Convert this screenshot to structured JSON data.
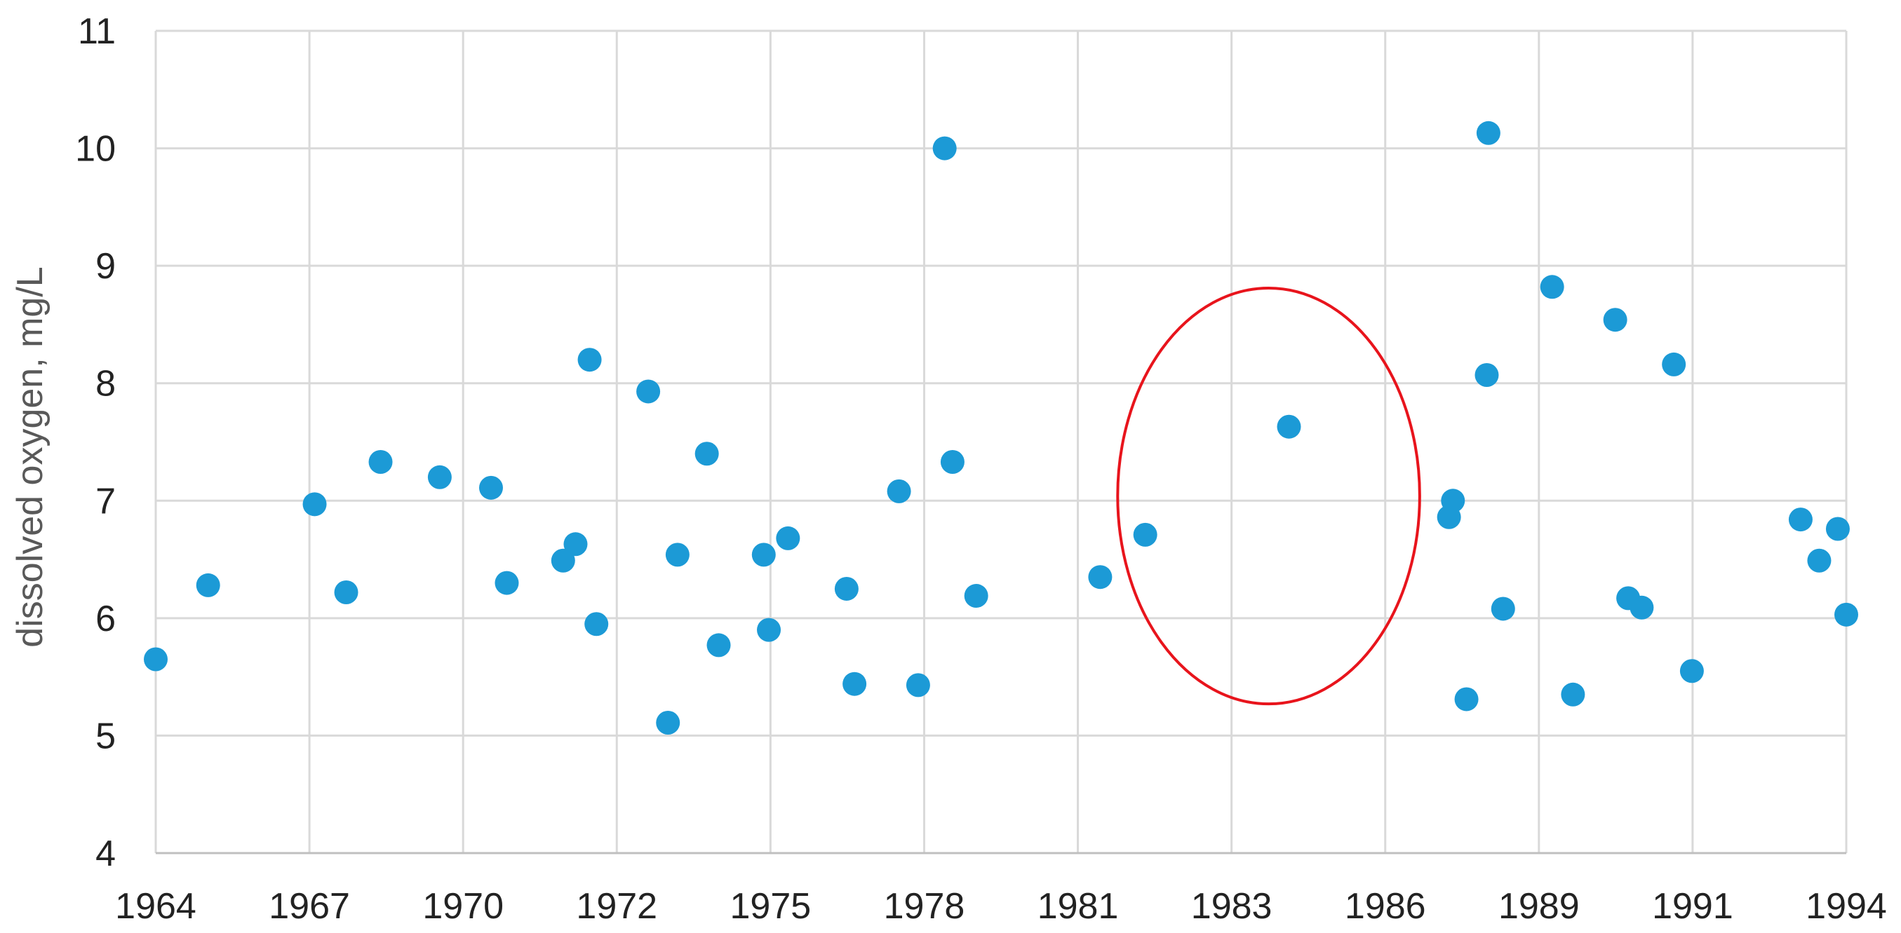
{
  "chart_data": {
    "type": "scatter",
    "title": "",
    "xlabel": "",
    "ylabel": "dissolved oxygen, mg/L",
    "xlim": [
      1964.0,
      1994.0
    ],
    "ylim": [
      4,
      11
    ],
    "y_ticks": [
      4,
      5,
      6,
      7,
      8,
      9,
      10,
      11
    ],
    "x_tick_labels": [
      "1964",
      "1967",
      "1970",
      "1972",
      "1975",
      "1978",
      "1981",
      "1983",
      "1986",
      "1989",
      "1991",
      "1994"
    ],
    "grid": true,
    "legend": "none",
    "point_color": "#1c9ad6",
    "series": [
      {
        "points": [
          [
            1964.0,
            5.65
          ],
          [
            1964.93,
            6.28
          ],
          [
            1966.82,
            6.97
          ],
          [
            1967.38,
            6.22
          ],
          [
            1967.99,
            7.33
          ],
          [
            1969.04,
            7.2
          ],
          [
            1969.95,
            7.11
          ],
          [
            1970.23,
            6.3
          ],
          [
            1971.23,
            6.49
          ],
          [
            1971.45,
            6.63
          ],
          [
            1971.7,
            8.2
          ],
          [
            1971.82,
            5.95
          ],
          [
            1972.74,
            7.93
          ],
          [
            1973.09,
            5.11
          ],
          [
            1973.26,
            6.54
          ],
          [
            1973.78,
            7.4
          ],
          [
            1973.99,
            5.77
          ],
          [
            1974.79,
            6.54
          ],
          [
            1974.88,
            5.9
          ],
          [
            1975.22,
            6.68
          ],
          [
            1976.26,
            6.25
          ],
          [
            1976.4,
            5.44
          ],
          [
            1977.19,
            7.08
          ],
          [
            1977.53,
            5.43
          ],
          [
            1978.0,
            10.0
          ],
          [
            1978.14,
            7.33
          ],
          [
            1978.56,
            6.19
          ],
          [
            1980.76,
            6.35
          ],
          [
            1981.56,
            6.71
          ],
          [
            1984.11,
            7.63
          ],
          [
            1986.95,
            6.86
          ],
          [
            1987.02,
            7.0
          ],
          [
            1987.26,
            5.31
          ],
          [
            1987.62,
            8.07
          ],
          [
            1987.65,
            10.13
          ],
          [
            1987.91,
            6.08
          ],
          [
            1988.78,
            8.82
          ],
          [
            1989.15,
            5.35
          ],
          [
            1989.9,
            8.54
          ],
          [
            1990.13,
            6.17
          ],
          [
            1990.37,
            6.09
          ],
          [
            1990.94,
            8.16
          ],
          [
            1991.26,
            5.55
          ],
          [
            1993.19,
            6.84
          ],
          [
            1993.52,
            6.49
          ],
          [
            1994.0,
            6.03
          ],
          [
            1993.85,
            6.76
          ]
        ]
      }
    ],
    "annotations": [
      {
        "shape": "ellipse",
        "color": "#e8141c",
        "cx": 1983.75,
        "cy": 7.04,
        "rx_years": 2.68,
        "ry_mgL": 1.77
      }
    ]
  }
}
